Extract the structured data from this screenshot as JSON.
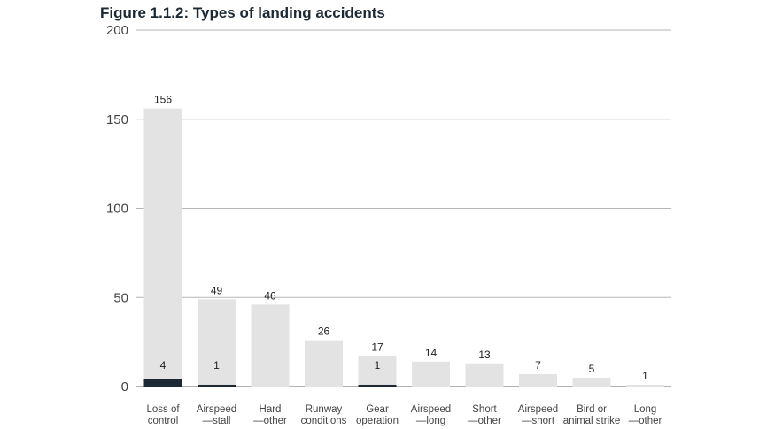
{
  "chart_data": {
    "type": "bar",
    "title": "Figure 1.1.2: Types of landing accidents",
    "xlabel": "",
    "ylabel": "",
    "ylim": [
      0,
      200
    ],
    "yticks": [
      "0",
      "50",
      "100",
      "150",
      "200"
    ],
    "grid": true,
    "categories": [
      [
        "Loss of",
        "control"
      ],
      [
        "Airspeed",
        "—stall"
      ],
      [
        "Hard",
        "—other"
      ],
      [
        "Runway",
        "conditions"
      ],
      [
        "Gear",
        "operation"
      ],
      [
        "Airspeed",
        "—long"
      ],
      [
        "Short",
        "—other"
      ],
      [
        "Airspeed",
        "—short"
      ],
      [
        "Bird or",
        "animal strike"
      ],
      [
        "Long",
        "—other"
      ]
    ],
    "series": [
      {
        "values": [
          156,
          49,
          46,
          26,
          17,
          14,
          13,
          7,
          5,
          1
        ],
        "color": "#e3e3e3",
        "labels": [
          "156",
          "49",
          "46",
          "26",
          "17",
          "14",
          "13",
          "7",
          "5",
          "1"
        ]
      },
      {
        "values": [
          4,
          1,
          0,
          0,
          1,
          0,
          0,
          0,
          0,
          0
        ],
        "color": "#1c2833",
        "labels": [
          "4",
          "1",
          "",
          "",
          "1",
          "",
          "",
          "",
          "",
          ""
        ]
      }
    ],
    "colors": {
      "grid": "#b5b5b5",
      "axis": "#666666"
    }
  }
}
